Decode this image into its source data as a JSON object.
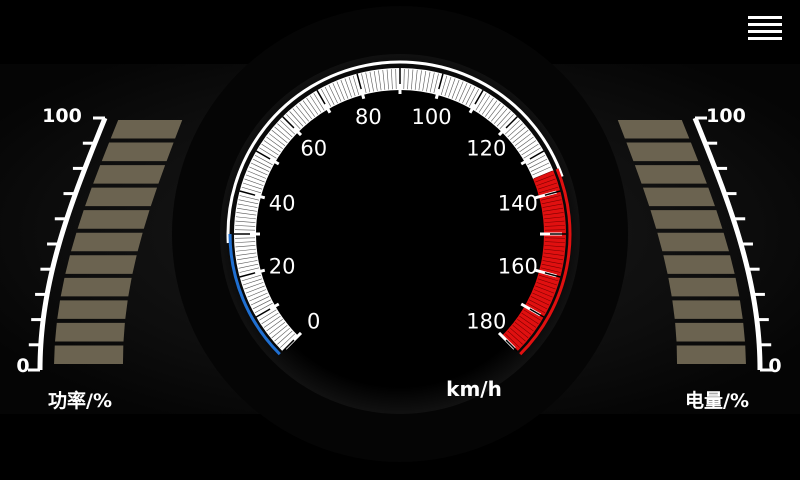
{
  "menu": {
    "icon": "hamburger-menu-icon"
  },
  "speedometer": {
    "unit_label": "km/h",
    "ticks": [
      "0",
      "20",
      "40",
      "60",
      "80",
      "100",
      "120",
      "140",
      "160",
      "180"
    ],
    "min": 0,
    "max": 180,
    "blue_zone": [
      0,
      40
    ],
    "red_zone": [
      135,
      180
    ],
    "colors": {
      "blue": "#1f6fd1",
      "red": "#e01010",
      "scale": "#ffffff"
    }
  },
  "power_gauge": {
    "label": "功率/%",
    "max_label": "100",
    "min_label": "0",
    "segments": 11,
    "segment_color": "#6b6350"
  },
  "battery_gauge": {
    "label": "电量/%",
    "max_label": "100",
    "min_label": "0",
    "segments": 11,
    "segment_color": "#6b6350"
  }
}
